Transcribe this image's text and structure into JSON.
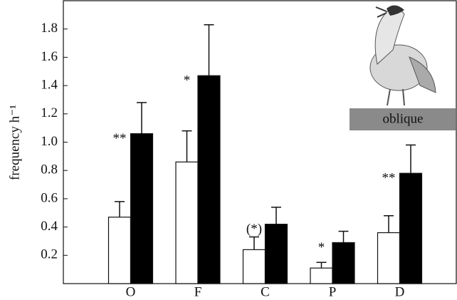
{
  "chart_data": {
    "type": "bar",
    "y_label": "frequency h⁻¹",
    "inset_label": "oblique",
    "categories": [
      "O",
      "F",
      "C",
      "P",
      "D"
    ],
    "series": [
      {
        "color": "#ffffff",
        "values": [
          0.47,
          0.86,
          0.24,
          0.11,
          0.36
        ],
        "errors": [
          0.11,
          0.22,
          0.09,
          0.04,
          0.12
        ]
      },
      {
        "color": "#000000",
        "values": [
          1.06,
          1.47,
          0.42,
          0.29,
          0.78
        ],
        "errors": [
          0.22,
          0.36,
          0.12,
          0.08,
          0.2
        ]
      }
    ],
    "annotations": [
      "**",
      "*",
      "(*)",
      "*",
      "**"
    ],
    "ylim": [
      0,
      2.0
    ],
    "yticks": [
      0.2,
      0.4,
      0.6,
      0.8,
      {
        "value": 1.0,
        "label": "1.0"
      },
      1.2,
      1.4,
      1.6,
      1.8
    ],
    "grid": false
  }
}
